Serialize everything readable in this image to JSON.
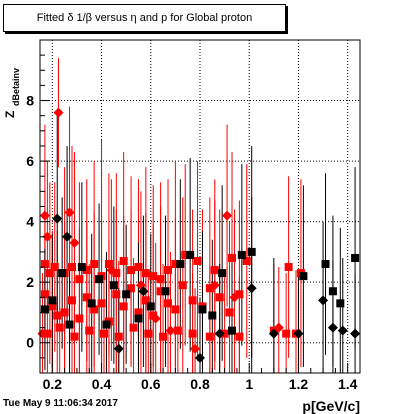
{
  "title": "Fitted δ 1/β versus η and p for Global proton",
  "timestamp": "Tue May  9 11:06:34 2017",
  "chart_data": {
    "type": "scatter",
    "xlabel": "p[GeV/c]",
    "ylabel": "Z_dBetainv",
    "xlim": [
      0.15,
      1.45
    ],
    "ylim": [
      -1.0,
      10.0
    ],
    "x_ticks": [
      0.2,
      0.4,
      0.6,
      0.8,
      1,
      1.2,
      1.4
    ],
    "y_ticks": [
      0,
      2,
      4,
      6,
      8
    ],
    "grid": true,
    "series": [
      {
        "color": "#ff0000",
        "marker": "square",
        "points": [
          {
            "x": 0.17,
            "y": 2.6,
            "err": 2.5
          },
          {
            "x": 0.19,
            "y": 2.3,
            "err": 3.0
          },
          {
            "x": 0.21,
            "y": 2.5,
            "err": 2.8
          },
          {
            "x": 0.25,
            "y": 2.3,
            "err": 3.5
          },
          {
            "x": 0.28,
            "y": 2.5,
            "err": 4.0
          },
          {
            "x": 0.31,
            "y": 2.1,
            "err": 3.2
          },
          {
            "x": 0.34,
            "y": 2.4,
            "err": 3.0
          },
          {
            "x": 0.37,
            "y": 2.6,
            "err": 3.4
          },
          {
            "x": 0.4,
            "y": 2.2,
            "err": 4.5
          },
          {
            "x": 0.43,
            "y": 2.6,
            "err": 3.0
          },
          {
            "x": 0.46,
            "y": 2.3,
            "err": 3.3
          },
          {
            "x": 0.49,
            "y": 2.7,
            "err": 3.6
          },
          {
            "x": 0.52,
            "y": 2.4,
            "err": 3.1
          },
          {
            "x": 0.55,
            "y": 2.5,
            "err": 2.9
          },
          {
            "x": 0.58,
            "y": 2.3,
            "err": 3.5
          },
          {
            "x": 0.61,
            "y": 2.2,
            "err": 3.0
          },
          {
            "x": 0.64,
            "y": 2.1,
            "err": 3.2
          },
          {
            "x": 0.67,
            "y": 2.4,
            "err": 3.0
          },
          {
            "x": 0.7,
            "y": 2.6,
            "err": 3.4
          },
          {
            "x": 0.74,
            "y": 2.9,
            "err": 3.0
          },
          {
            "x": 0.79,
            "y": 2.7,
            "err": 3.3
          },
          {
            "x": 0.86,
            "y": 2.4,
            "err": 3.0
          },
          {
            "x": 0.93,
            "y": 2.8,
            "err": 3.5
          },
          {
            "x": 0.99,
            "y": 2.7,
            "err": 3.2
          },
          {
            "x": 1.16,
            "y": 2.5,
            "err": 3.0
          },
          {
            "x": 1.21,
            "y": 2.3,
            "err": 3.1
          },
          {
            "x": 0.17,
            "y": 1.6,
            "err": 2.0
          },
          {
            "x": 0.2,
            "y": 1.2,
            "err": 2.5
          },
          {
            "x": 0.22,
            "y": 0.9,
            "err": 2.8
          },
          {
            "x": 0.25,
            "y": 1.0,
            "err": 3.0
          },
          {
            "x": 0.28,
            "y": 1.4,
            "err": 2.6
          },
          {
            "x": 0.31,
            "y": 0.8,
            "err": 3.0
          },
          {
            "x": 0.34,
            "y": 1.5,
            "err": 2.5
          },
          {
            "x": 0.37,
            "y": 1.1,
            "err": 3.2
          },
          {
            "x": 0.4,
            "y": 1.3,
            "err": 3.0
          },
          {
            "x": 0.43,
            "y": 0.7,
            "err": 2.7
          },
          {
            "x": 0.46,
            "y": 1.6,
            "err": 2.8
          },
          {
            "x": 0.49,
            "y": 1.2,
            "err": 3.0
          },
          {
            "x": 0.52,
            "y": 1.8,
            "err": 2.6
          },
          {
            "x": 0.55,
            "y": 1.0,
            "err": 3.1
          },
          {
            "x": 0.58,
            "y": 1.4,
            "err": 2.9
          },
          {
            "x": 0.61,
            "y": 0.9,
            "err": 3.0
          },
          {
            "x": 0.64,
            "y": 1.7,
            "err": 2.8
          },
          {
            "x": 0.67,
            "y": 1.3,
            "err": 3.1
          },
          {
            "x": 0.7,
            "y": 1.1,
            "err": 3.0
          },
          {
            "x": 0.73,
            "y": 1.9,
            "err": 2.9
          },
          {
            "x": 0.77,
            "y": 1.4,
            "err": 3.0
          },
          {
            "x": 0.81,
            "y": 1.2,
            "err": 3.2
          },
          {
            "x": 0.84,
            "y": 1.8,
            "err": 3.0
          },
          {
            "x": 0.88,
            "y": 1.5,
            "err": 2.9
          },
          {
            "x": 0.92,
            "y": 1.0,
            "err": 3.0
          },
          {
            "x": 0.96,
            "y": 1.6,
            "err": 3.1
          },
          {
            "x": 0.18,
            "y": 0.3,
            "err": 1.5
          },
          {
            "x": 0.23,
            "y": 0.5,
            "err": 1.8
          },
          {
            "x": 0.29,
            "y": 0.2,
            "err": 2.0
          },
          {
            "x": 0.35,
            "y": 0.4,
            "err": 2.2
          },
          {
            "x": 0.41,
            "y": 0.3,
            "err": 2.0
          },
          {
            "x": 0.47,
            "y": 0.2,
            "err": 2.5
          },
          {
            "x": 0.53,
            "y": 0.5,
            "err": 2.3
          },
          {
            "x": 0.59,
            "y": 0.3,
            "err": 2.1
          },
          {
            "x": 0.65,
            "y": 0.2,
            "err": 2.4
          },
          {
            "x": 0.71,
            "y": 0.4,
            "err": 2.2
          },
          {
            "x": 0.77,
            "y": 0.3,
            "err": 2.0
          },
          {
            "x": 0.84,
            "y": 0.2,
            "err": 2.3
          },
          {
            "x": 0.9,
            "y": 0.3,
            "err": 2.1
          },
          {
            "x": 0.96,
            "y": 0.2,
            "err": 2.0
          },
          {
            "x": 1.1,
            "y": 0.4,
            "err": 2.2
          },
          {
            "x": 1.15,
            "y": 0.3,
            "err": 2.0
          },
          {
            "x": 1.19,
            "y": 0.3,
            "err": 2.1
          }
        ]
      },
      {
        "color": "#ff0000",
        "marker": "diamond",
        "points": [
          {
            "x": 0.225,
            "y": 7.6,
            "err": 1.8
          },
          {
            "x": 0.17,
            "y": 4.2,
            "err": 3.0
          },
          {
            "x": 0.27,
            "y": 4.3,
            "err": 3.5
          },
          {
            "x": 0.18,
            "y": 3.5,
            "err": 2.5
          },
          {
            "x": 0.29,
            "y": 3.3,
            "err": 3.0
          },
          {
            "x": 0.91,
            "y": 4.2,
            "err": 3.0
          },
          {
            "x": 0.16,
            "y": 0.3,
            "err": 2.0
          },
          {
            "x": 0.78,
            "y": -0.2,
            "err": 2.0
          },
          {
            "x": 0.62,
            "y": 0.8,
            "err": 2.5
          },
          {
            "x": 0.86,
            "y": 1.9,
            "err": 2.8
          },
          {
            "x": 0.94,
            "y": 1.5,
            "err": 2.9
          },
          {
            "x": 0.44,
            "y": 2.4,
            "err": 3.0
          },
          {
            "x": 0.56,
            "y": 1.9,
            "err": 3.1
          },
          {
            "x": 0.68,
            "y": 0.4,
            "err": 2.6
          },
          {
            "x": 1.12,
            "y": 0.5,
            "err": 2.0
          }
        ]
      },
      {
        "color": "#000000",
        "marker": "square",
        "points": [
          {
            "x": 0.17,
            "y": 1.1,
            "err": 2.0
          },
          {
            "x": 0.2,
            "y": 1.4,
            "err": 2.2
          },
          {
            "x": 0.24,
            "y": 2.3,
            "err": 2.5
          },
          {
            "x": 0.27,
            "y": 0.6,
            "err": 2.0
          },
          {
            "x": 0.32,
            "y": 2.5,
            "err": 2.8
          },
          {
            "x": 0.36,
            "y": 1.3,
            "err": 2.3
          },
          {
            "x": 0.39,
            "y": 2.1,
            "err": 2.5
          },
          {
            "x": 0.42,
            "y": 0.6,
            "err": 2.4
          },
          {
            "x": 0.45,
            "y": 1.9,
            "err": 2.6
          },
          {
            "x": 0.5,
            "y": 1.6,
            "err": 2.3
          },
          {
            "x": 0.55,
            "y": 0.8,
            "err": 2.5
          },
          {
            "x": 0.6,
            "y": 1.2,
            "err": 2.4
          },
          {
            "x": 0.66,
            "y": 1.7,
            "err": 2.5
          },
          {
            "x": 0.72,
            "y": 2.6,
            "err": 2.8
          },
          {
            "x": 0.76,
            "y": 2.9,
            "err": 3.2
          },
          {
            "x": 0.81,
            "y": 1.1,
            "err": 2.6
          },
          {
            "x": 0.85,
            "y": 0.9,
            "err": 2.5
          },
          {
            "x": 0.89,
            "y": 2.3,
            "err": 2.9
          },
          {
            "x": 0.93,
            "y": 0.4,
            "err": 2.5
          },
          {
            "x": 0.97,
            "y": 2.9,
            "err": 3.0
          },
          {
            "x": 1.01,
            "y": 3.0,
            "err": 3.5
          },
          {
            "x": 1.22,
            "y": 2.2,
            "err": 3.0
          },
          {
            "x": 1.31,
            "y": 2.6,
            "err": 3.0
          },
          {
            "x": 1.34,
            "y": 1.7,
            "err": 2.5
          },
          {
            "x": 1.37,
            "y": 1.3,
            "err": 2.5
          },
          {
            "x": 1.43,
            "y": 2.8,
            "err": 3.0
          }
        ]
      },
      {
        "color": "#000000",
        "marker": "diamond",
        "points": [
          {
            "x": 0.22,
            "y": 4.1,
            "err": 3.5
          },
          {
            "x": 0.26,
            "y": 3.5,
            "err": 3.0
          },
          {
            "x": 0.47,
            "y": -0.2,
            "err": 2.0
          },
          {
            "x": 0.57,
            "y": 1.7,
            "err": 2.5
          },
          {
            "x": 0.8,
            "y": -0.5,
            "err": 2.0
          },
          {
            "x": 0.88,
            "y": 0.3,
            "err": 2.3
          },
          {
            "x": 1.01,
            "y": 1.8,
            "err": 3.0
          },
          {
            "x": 1.1,
            "y": 0.3,
            "err": 2.5
          },
          {
            "x": 1.2,
            "y": 0.3,
            "err": 2.0
          },
          {
            "x": 1.3,
            "y": 1.4,
            "err": 2.6
          },
          {
            "x": 1.34,
            "y": 0.5,
            "err": 2.2
          },
          {
            "x": 1.38,
            "y": 0.4,
            "err": 2.4
          },
          {
            "x": 1.43,
            "y": 0.3,
            "err": 2.0
          }
        ]
      }
    ]
  }
}
